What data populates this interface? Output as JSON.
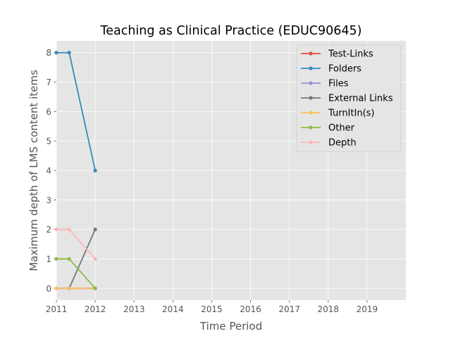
{
  "chart_data": {
    "type": "line",
    "title": "Teaching as Clinical Practice (EDUC90645)",
    "xlabel": "Time Period",
    "ylabel": "Maximum depth of LMS content items",
    "xlim": [
      2011,
      2020
    ],
    "ylim": [
      -0.4,
      8.4
    ],
    "x_ticks": [
      2011,
      2012,
      2013,
      2014,
      2015,
      2016,
      2017,
      2018,
      2019
    ],
    "x_tick_labels": [
      "2011",
      "2012",
      "2013",
      "2014",
      "2015",
      "2016",
      "2017",
      "2018",
      "2019"
    ],
    "y_ticks": [
      0,
      1,
      2,
      3,
      4,
      5,
      6,
      7,
      8
    ],
    "y_tick_labels": [
      "0",
      "1",
      "2",
      "3",
      "4",
      "5",
      "6",
      "7",
      "8"
    ],
    "grid": true,
    "legend_position": "top-right",
    "x": [
      2011.0,
      2011.33,
      2012.0
    ],
    "series": [
      {
        "name": "Test-Links",
        "color": "#E24A33",
        "values": [
          0,
          0,
          0
        ]
      },
      {
        "name": "Folders",
        "color": "#348ABD",
        "values": [
          8,
          8,
          4
        ]
      },
      {
        "name": "Files",
        "color": "#988ED5",
        "values": [
          0,
          0,
          0
        ]
      },
      {
        "name": "External Links",
        "color": "#777777",
        "values": [
          null,
          0,
          2
        ]
      },
      {
        "name": "TurnItIn(s)",
        "color": "#FBC15E",
        "values": [
          0,
          0,
          0
        ]
      },
      {
        "name": "Other",
        "color": "#8EBA42",
        "values": [
          1,
          1,
          0
        ]
      },
      {
        "name": "Depth",
        "color": "#FFB5B8",
        "values": [
          2,
          2,
          1
        ]
      }
    ]
  }
}
